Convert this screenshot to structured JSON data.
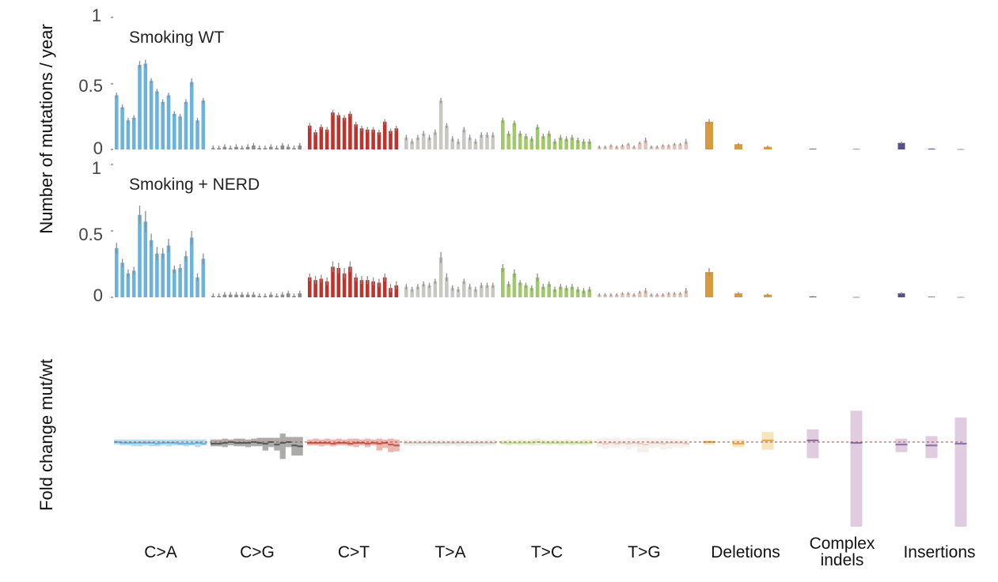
{
  "chart_data": [
    {
      "type": "bar",
      "panel": "top",
      "title": "Smoking WT",
      "ylabel": "Number of mutations / year",
      "ylim": [
        0,
        1
      ],
      "yticks": [
        "0",
        "0.5",
        "1"
      ],
      "series": [
        {
          "name": "C>A",
          "color": "#6bb3dc",
          "values": [
            0.41,
            0.32,
            0.22,
            0.24,
            0.64,
            0.65,
            0.52,
            0.44,
            0.36,
            0.41,
            0.27,
            0.25,
            0.36,
            0.51,
            0.22,
            0.37
          ],
          "errors": [
            0.02,
            0.02,
            0.02,
            0.02,
            0.03,
            0.03,
            0.02,
            0.02,
            0.02,
            0.02,
            0.02,
            0.02,
            0.02,
            0.03,
            0.02,
            0.02
          ]
        },
        {
          "name": "C>G",
          "color": "#8a8a8a",
          "values": [
            0.01,
            0.01,
            0.02,
            0.01,
            0.02,
            0.01,
            0.02,
            0.03,
            0.01,
            0.01,
            0.02,
            0.01,
            0.03,
            0.02,
            0.01,
            0.03
          ],
          "errors": [
            0.02,
            0.02,
            0.02,
            0.02,
            0.02,
            0.02,
            0.02,
            0.02,
            0.02,
            0.02,
            0.02,
            0.02,
            0.02,
            0.02,
            0.02,
            0.02
          ]
        },
        {
          "name": "C>T",
          "color": "#c0332c",
          "values": [
            0.18,
            0.13,
            0.17,
            0.15,
            0.28,
            0.26,
            0.24,
            0.27,
            0.19,
            0.16,
            0.15,
            0.15,
            0.13,
            0.21,
            0.14,
            0.16
          ],
          "errors": [
            0.02,
            0.02,
            0.02,
            0.02,
            0.02,
            0.02,
            0.02,
            0.02,
            0.02,
            0.02,
            0.02,
            0.02,
            0.02,
            0.02,
            0.02,
            0.02
          ]
        },
        {
          "name": "T>A",
          "color": "#c8c7c2",
          "values": [
            0.09,
            0.06,
            0.09,
            0.12,
            0.09,
            0.13,
            0.37,
            0.18,
            0.08,
            0.06,
            0.15,
            0.09,
            0.06,
            0.11,
            0.11,
            0.11
          ],
          "errors": [
            0.02,
            0.02,
            0.02,
            0.02,
            0.02,
            0.02,
            0.02,
            0.02,
            0.02,
            0.02,
            0.02,
            0.02,
            0.02,
            0.02,
            0.02,
            0.02
          ]
        },
        {
          "name": "T>C",
          "color": "#a1c86a",
          "values": [
            0.22,
            0.12,
            0.2,
            0.12,
            0.1,
            0.08,
            0.17,
            0.1,
            0.12,
            0.06,
            0.09,
            0.08,
            0.09,
            0.07,
            0.06,
            0.06
          ],
          "errors": [
            0.02,
            0.02,
            0.02,
            0.02,
            0.02,
            0.02,
            0.02,
            0.02,
            0.02,
            0.02,
            0.02,
            0.02,
            0.02,
            0.02,
            0.02,
            0.02
          ]
        },
        {
          "name": "T>G",
          "color": "#e2c1b6",
          "values": [
            0.02,
            0.02,
            0.03,
            0.02,
            0.03,
            0.04,
            0.02,
            0.05,
            0.07,
            0.02,
            0.02,
            0.03,
            0.03,
            0.04,
            0.04,
            0.06
          ],
          "errors": [
            0.01,
            0.01,
            0.01,
            0.01,
            0.01,
            0.01,
            0.01,
            0.01,
            0.02,
            0.01,
            0.01,
            0.01,
            0.01,
            0.01,
            0.01,
            0.02
          ]
        },
        {
          "name": "Deletions",
          "color": "#d89a3e",
          "values": [
            0.21,
            0.04,
            0.02
          ],
          "errors": [
            0.02,
            0.01,
            0.01
          ]
        },
        {
          "name": "Complex indels",
          "color": "#5b4e8c",
          "values": [
            0.005,
            0.003
          ],
          "errors": [
            0.004,
            0.003
          ]
        },
        {
          "name": "Insertions",
          "color": "#5b4e8c",
          "values": [
            0.05,
            0.006,
            0.002
          ],
          "errors": [
            0.01,
            0.004,
            0.003
          ]
        }
      ]
    },
    {
      "type": "bar",
      "panel": "middle",
      "title": "Smoking + NERD",
      "ylim": [
        0,
        1
      ],
      "yticks": [
        "0",
        "0.5",
        "1"
      ],
      "series": [
        {
          "name": "C>A",
          "color": "#6bb3dc",
          "values": [
            0.37,
            0.26,
            0.18,
            0.2,
            0.62,
            0.57,
            0.43,
            0.33,
            0.33,
            0.39,
            0.21,
            0.22,
            0.31,
            0.45,
            0.15,
            0.29
          ],
          "errors": [
            0.04,
            0.03,
            0.03,
            0.03,
            0.07,
            0.08,
            0.05,
            0.05,
            0.04,
            0.05,
            0.03,
            0.03,
            0.04,
            0.05,
            0.03,
            0.04
          ]
        },
        {
          "name": "C>G",
          "color": "#8a8a8a",
          "values": [
            0.01,
            0.01,
            0.02,
            0.02,
            0.02,
            0.02,
            0.02,
            0.02,
            0.01,
            0.01,
            0.02,
            0.01,
            0.02,
            0.03,
            0.01,
            0.03
          ],
          "errors": [
            0.02,
            0.02,
            0.02,
            0.02,
            0.02,
            0.02,
            0.02,
            0.02,
            0.02,
            0.02,
            0.02,
            0.02,
            0.02,
            0.02,
            0.02,
            0.02
          ]
        },
        {
          "name": "C>T",
          "color": "#c0332c",
          "values": [
            0.15,
            0.13,
            0.14,
            0.12,
            0.23,
            0.22,
            0.18,
            0.23,
            0.15,
            0.13,
            0.13,
            0.12,
            0.11,
            0.15,
            0.07,
            0.09
          ],
          "errors": [
            0.03,
            0.03,
            0.03,
            0.03,
            0.04,
            0.04,
            0.04,
            0.04,
            0.03,
            0.03,
            0.03,
            0.03,
            0.03,
            0.03,
            0.03,
            0.03
          ]
        },
        {
          "name": "T>A",
          "color": "#c8c7c2",
          "values": [
            0.08,
            0.06,
            0.08,
            0.1,
            0.09,
            0.12,
            0.3,
            0.15,
            0.07,
            0.06,
            0.12,
            0.08,
            0.06,
            0.09,
            0.09,
            0.09
          ],
          "errors": [
            0.02,
            0.02,
            0.02,
            0.02,
            0.02,
            0.02,
            0.04,
            0.03,
            0.02,
            0.02,
            0.02,
            0.02,
            0.02,
            0.02,
            0.02,
            0.02
          ]
        },
        {
          "name": "T>C",
          "color": "#a1c86a",
          "values": [
            0.22,
            0.1,
            0.18,
            0.11,
            0.09,
            0.07,
            0.15,
            0.08,
            0.1,
            0.06,
            0.08,
            0.07,
            0.08,
            0.06,
            0.05,
            0.06
          ],
          "errors": [
            0.03,
            0.02,
            0.03,
            0.02,
            0.02,
            0.02,
            0.03,
            0.02,
            0.02,
            0.02,
            0.02,
            0.02,
            0.02,
            0.02,
            0.02,
            0.02
          ]
        },
        {
          "name": "T>G",
          "color": "#e2c1b6",
          "values": [
            0.02,
            0.02,
            0.02,
            0.02,
            0.03,
            0.03,
            0.02,
            0.04,
            0.05,
            0.02,
            0.02,
            0.02,
            0.03,
            0.03,
            0.03,
            0.05
          ],
          "errors": [
            0.01,
            0.01,
            0.01,
            0.01,
            0.01,
            0.01,
            0.01,
            0.01,
            0.02,
            0.01,
            0.01,
            0.01,
            0.01,
            0.01,
            0.01,
            0.02
          ]
        },
        {
          "name": "Deletions",
          "color": "#d89a3e",
          "values": [
            0.19,
            0.03,
            0.02
          ],
          "errors": [
            0.03,
            0.01,
            0.01
          ]
        },
        {
          "name": "Complex indels",
          "color": "#5b4e8c",
          "values": [
            0.006,
            0.002
          ],
          "errors": [
            0.006,
            0.003
          ]
        },
        {
          "name": "Insertions",
          "color": "#5b4e8c",
          "values": [
            0.03,
            0.004,
            0.002
          ],
          "errors": [
            0.01,
            0.003,
            0.002
          ]
        }
      ]
    },
    {
      "type": "bar",
      "panel": "bottom",
      "title": "",
      "ylabel": "Fold change mut/wt",
      "reference_line": 1.0,
      "ylim": [
        0,
        2
      ],
      "note": "interval bars: [lower, upper] fold change; line at estimate",
      "series": [
        {
          "name": "C>A",
          "color": "#a9d6ea",
          "line_color": "#6bb3dc",
          "lower": [
            0.97,
            0.96,
            0.96,
            0.95,
            0.95,
            0.96,
            0.95,
            0.95,
            0.96,
            0.95,
            0.96,
            0.96,
            0.95,
            0.96,
            0.94,
            0.96
          ],
          "upper": [
            1.03,
            1.03,
            1.03,
            1.03,
            1.03,
            1.03,
            1.03,
            1.03,
            1.03,
            1.03,
            1.03,
            1.03,
            1.03,
            1.03,
            1.03,
            1.03
          ],
          "estimate": [
            1.0,
            0.99,
            0.99,
            0.99,
            0.99,
            0.99,
            0.99,
            0.98,
            0.99,
            0.99,
            0.99,
            0.98,
            0.98,
            0.98,
            0.99,
            0.98
          ]
        },
        {
          "name": "C>G",
          "color": "#9c9c9a",
          "line_color": "#555555",
          "lower": [
            0.95,
            0.95,
            0.94,
            0.96,
            0.95,
            0.95,
            0.94,
            0.95,
            0.95,
            0.9,
            0.94,
            0.9,
            0.8,
            0.94,
            0.84,
            0.84
          ],
          "upper": [
            1.03,
            1.03,
            1.04,
            1.03,
            1.04,
            1.04,
            1.03,
            1.04,
            1.05,
            1.05,
            1.05,
            1.05,
            1.1,
            1.06,
            1.06,
            1.06
          ],
          "estimate": [
            0.98,
            0.98,
            0.99,
            1.0,
            0.99,
            0.99,
            0.99,
            1.0,
            0.99,
            0.98,
            1.0,
            0.97,
            0.99,
            1.0,
            0.96,
            0.95
          ]
        },
        {
          "name": "C>T",
          "color": "#e6a9a0",
          "line_color": "#c0544c",
          "lower": [
            0.96,
            0.96,
            0.95,
            0.96,
            0.95,
            0.96,
            0.96,
            0.95,
            0.94,
            0.96,
            0.94,
            0.96,
            0.9,
            0.93,
            0.88,
            0.89
          ],
          "upper": [
            1.03,
            1.04,
            1.03,
            1.04,
            1.03,
            1.04,
            1.03,
            1.04,
            1.04,
            1.03,
            1.04,
            1.03,
            1.04,
            1.03,
            1.04,
            1.03
          ],
          "estimate": [
            0.99,
            0.99,
            0.99,
            0.99,
            0.98,
            0.99,
            0.99,
            0.98,
            0.99,
            0.99,
            0.98,
            0.99,
            0.98,
            0.99,
            0.97,
            0.96
          ]
        },
        {
          "name": "T>A",
          "color": "#ecebe6",
          "line_color": "#cfcdc6",
          "lower": [
            0.96,
            0.95,
            0.96,
            0.95,
            0.96,
            0.95,
            0.96,
            0.95,
            0.96,
            0.95,
            0.96,
            0.95,
            0.96,
            0.95,
            0.96,
            0.96
          ],
          "upper": [
            1.03,
            1.02,
            1.03,
            1.02,
            1.03,
            1.02,
            1.03,
            1.02,
            1.03,
            1.03,
            1.03,
            1.02,
            1.03,
            1.02,
            1.03,
            1.03
          ],
          "estimate": [
            0.99,
            0.99,
            0.99,
            0.99,
            0.99,
            0.99,
            0.99,
            0.99,
            0.99,
            0.99,
            0.99,
            0.99,
            0.99,
            0.99,
            0.99,
            0.99
          ]
        },
        {
          "name": "T>C",
          "color": "#e4efc9",
          "line_color": "#c6dca0",
          "lower": [
            0.97,
            0.96,
            0.97,
            0.96,
            0.97,
            0.96,
            0.96,
            0.97,
            0.96,
            0.97,
            0.96,
            0.97,
            0.96,
            0.97,
            0.96,
            0.97
          ],
          "upper": [
            1.02,
            1.03,
            1.02,
            1.03,
            1.02,
            1.03,
            1.04,
            1.03,
            1.02,
            1.03,
            1.02,
            1.03,
            1.02,
            1.02,
            1.03,
            1.03
          ],
          "estimate": [
            0.99,
            0.99,
            0.99,
            0.99,
            0.99,
            0.99,
            1.0,
            0.99,
            0.99,
            0.99,
            0.99,
            0.99,
            0.99,
            0.99,
            0.99,
            0.99
          ]
        },
        {
          "name": "T>G",
          "color": "#f5ece8",
          "line_color": "#e2cfc6",
          "lower": [
            0.94,
            0.92,
            0.94,
            0.93,
            0.94,
            0.91,
            0.94,
            0.88,
            0.88,
            0.93,
            0.94,
            0.91,
            0.92,
            0.94,
            0.93,
            0.94
          ],
          "upper": [
            1.04,
            1.05,
            1.04,
            1.05,
            1.03,
            1.05,
            1.04,
            1.05,
            1.05,
            1.04,
            1.04,
            1.05,
            1.04,
            1.04,
            1.03,
            1.03
          ],
          "estimate": [
            0.99,
            0.98,
            0.99,
            0.98,
            0.99,
            0.98,
            0.99,
            0.98,
            0.97,
            0.99,
            0.99,
            0.98,
            0.99,
            0.99,
            0.99,
            0.98
          ]
        },
        {
          "name": "Deletions",
          "color": "#f6dfae",
          "line_color": "#e0a84e",
          "lower": [
            0.97,
            0.94,
            0.91
          ],
          "upper": [
            1.02,
            1.03,
            1.12
          ],
          "estimate": [
            1.0,
            0.98,
            1.02
          ]
        },
        {
          "name": "Complex indels",
          "color": "#d9c3d9",
          "line_color": "#8a6ca0",
          "lower": [
            0.81,
            0.0
          ],
          "upper": [
            1.15,
            1.37
          ],
          "estimate": [
            1.02,
            0.99
          ]
        },
        {
          "name": "Insertions",
          "color": "#d9c3d9",
          "line_color": "#8a6ca0",
          "lower": [
            0.88,
            0.81,
            0.0
          ],
          "upper": [
            1.04,
            1.07,
            1.29
          ],
          "estimate": [
            0.97,
            0.96,
            0.98
          ]
        }
      ]
    }
  ],
  "category_labels": [
    "C>A",
    "C>G",
    "C>T",
    "T>A",
    "T>C",
    "T>G",
    "Deletions",
    "Complex indels",
    "Insertions"
  ]
}
